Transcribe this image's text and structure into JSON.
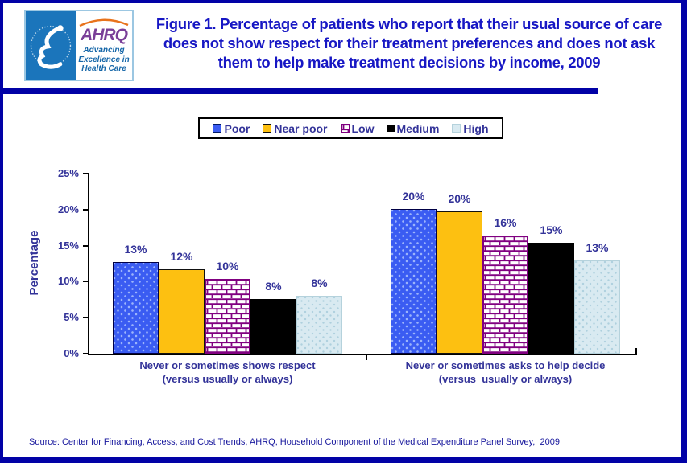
{
  "page": {
    "border_color": "#0101a6",
    "background": "#ffffff",
    "accent_text_color": "#333399",
    "title_color": "#1717c4"
  },
  "header": {
    "logo": {
      "hhs_symbol": "hhs-eagle-icon",
      "ahrq_acronym": "AHRQ",
      "tagline_lines": [
        "Advancing",
        "Excellence in",
        "Health Care"
      ]
    },
    "title": "Figure 1. Percentage of patients who report that their usual source of care does not show respect for their treatment preferences and does not ask them to help make treatment decisions by income, 2009"
  },
  "chart_data": {
    "type": "bar",
    "title": "Figure 1. Percentage of patients who report that their usual source of care does not show respect for their treatment preferences and does not ask them to help make treatment decisions by income, 2009",
    "categories": [
      "Never or sometimes shows respect\n(versus usually or always)",
      "Never or sometimes asks to help decide\n(versus  usually or always)"
    ],
    "series": [
      {
        "name": "Poor",
        "css": "poor",
        "color": "#3a5cf2",
        "pattern": "dots",
        "values": [
          13,
          20
        ],
        "values_precise": [
          12.7,
          20.1
        ],
        "labels": [
          "13%",
          "20%"
        ]
      },
      {
        "name": "Near poor",
        "css": "nearpoor",
        "color": "#fdc011",
        "pattern": "solid",
        "values": [
          12,
          20
        ],
        "values_precise": [
          11.7,
          19.8
        ],
        "labels": [
          "12%",
          "20%"
        ]
      },
      {
        "name": "Low",
        "css": "low",
        "color": "#800080",
        "pattern": "brick",
        "values": [
          10,
          16
        ],
        "values_precise": [
          10.4,
          16.4
        ],
        "labels": [
          "10%",
          "16%"
        ]
      },
      {
        "name": "Medium",
        "css": "medium",
        "color": "#000000",
        "pattern": "solid",
        "values": [
          8,
          15
        ],
        "values_precise": [
          7.6,
          15.4
        ],
        "labels": [
          "8%",
          "15%"
        ]
      },
      {
        "name": "High",
        "css": "high",
        "color": "#d9eaf1",
        "pattern": "dots",
        "values": [
          8,
          13
        ],
        "values_precise": [
          8.0,
          13.0
        ],
        "labels": [
          "8%",
          "13%"
        ]
      }
    ],
    "xlabel": "",
    "ylabel": "Percentage",
    "ylim": [
      0,
      25
    ],
    "y_ticks": [
      "0%",
      "5%",
      "10%",
      "15%",
      "20%",
      "25%"
    ],
    "grid": false,
    "legend_position": "top-center"
  },
  "source_note": "Source: Center for Financing, Access, and Cost Trends, AHRQ, Household Component of the Medical Expenditure Panel Survey,  2009"
}
